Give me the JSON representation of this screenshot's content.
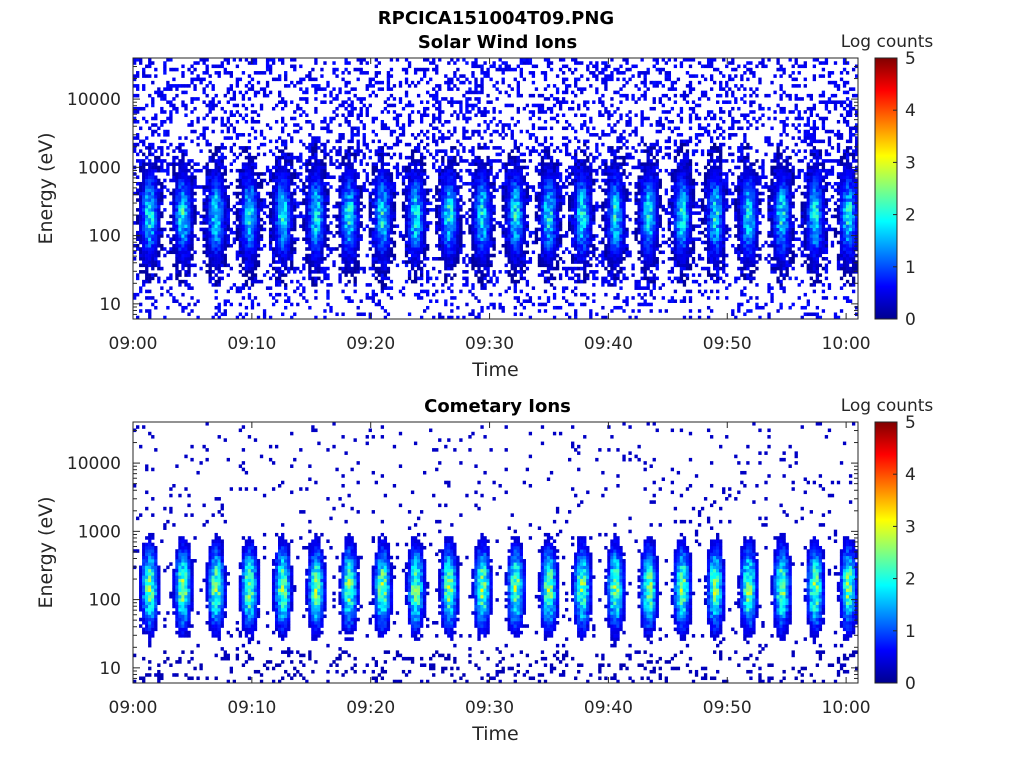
{
  "figure": {
    "title": "RPCICA151004T09.PNG"
  },
  "colormap": {
    "name": "jet",
    "stops": [
      "#00008f",
      "#0000ff",
      "#0080ff",
      "#00ffff",
      "#80ff80",
      "#ffff00",
      "#ff8000",
      "#ff0000",
      "#800000"
    ]
  },
  "chart_data": [
    {
      "type": "heatmap",
      "title": "Solar Wind Ions",
      "xlabel": "Time",
      "ylabel": "Energy (eV)",
      "y_scale": "log",
      "ylim": [
        6,
        40000
      ],
      "xlim": [
        "09:00",
        "10:01"
      ],
      "x_ticks": [
        "09:00",
        "09:10",
        "09:20",
        "09:30",
        "09:40",
        "09:50",
        "10:00"
      ],
      "y_ticks": [
        10,
        100,
        1000,
        10000
      ],
      "y_tick_labels": [
        "10",
        "100",
        "1000",
        "10000"
      ],
      "colorbar": {
        "label": "Log counts",
        "range": [
          0,
          5
        ],
        "ticks": [
          "0",
          "1",
          "2",
          "3",
          "4",
          "5"
        ]
      },
      "pulse_period_min": 2.8,
      "peak_energy_eV": 200,
      "peak_log_counts": 2.2,
      "background_log_counts": 0.4
    },
    {
      "type": "heatmap",
      "title": "Cometary Ions",
      "xlabel": "Time",
      "ylabel": "Energy (eV)",
      "y_scale": "log",
      "ylim": [
        6,
        40000
      ],
      "xlim": [
        "09:00",
        "10:01"
      ],
      "x_ticks": [
        "09:00",
        "09:10",
        "09:20",
        "09:30",
        "09:40",
        "09:50",
        "10:00"
      ],
      "y_ticks": [
        10,
        100,
        1000,
        10000
      ],
      "y_tick_labels": [
        "10",
        "100",
        "1000",
        "10000"
      ],
      "colorbar": {
        "label": "Log counts",
        "range": [
          0,
          5
        ],
        "ticks": [
          "0",
          "1",
          "2",
          "3",
          "4",
          "5"
        ]
      },
      "pulse_period_min": 2.8,
      "peak_energy_eV": 150,
      "peak_log_counts": 2.9,
      "background_log_counts": 0.2
    }
  ]
}
